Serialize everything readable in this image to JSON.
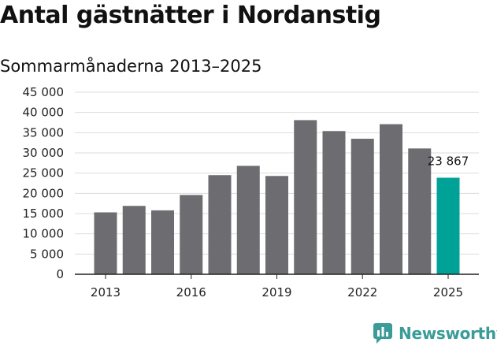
{
  "title": "Antal gästnätter i Nordanstig",
  "subtitle": "Sommarmånaderna 2013–2025",
  "brand": {
    "name": "Newsworthy",
    "color": "#3a9b97",
    "icon": "newsworthy-bar-chart-icon"
  },
  "colors": {
    "bar": "#6d6c71",
    "highlight": "#00a297",
    "grid": "#dddddd",
    "axis": "#222222"
  },
  "chart_data": {
    "type": "bar",
    "title": "Antal gästnätter i Nordanstig",
    "subtitle": "Sommarmånaderna 2013–2025",
    "categories": [
      "2013",
      "2014",
      "2015",
      "2016",
      "2017",
      "2018",
      "2019",
      "2020",
      "2021",
      "2022",
      "2023",
      "2024",
      "2025"
    ],
    "values": [
      15300,
      16900,
      15800,
      19600,
      24500,
      26800,
      24300,
      38100,
      35400,
      33500,
      37100,
      31100,
      23867
    ],
    "highlight_index": 12,
    "data_labels": [
      {
        "index": 12,
        "text": "23 867"
      }
    ],
    "ylim": [
      0,
      45000
    ],
    "yticks": [
      0,
      5000,
      10000,
      15000,
      20000,
      25000,
      30000,
      35000,
      40000,
      45000
    ],
    "ytick_labels": [
      "0",
      "5 000",
      "10 000",
      "15 000",
      "20 000",
      "25 000",
      "30 000",
      "35 000",
      "40 000",
      "45 000"
    ],
    "xtick_labels": [
      "2013",
      "2016",
      "2019",
      "2022",
      "2025"
    ],
    "xlabel": "",
    "ylabel": "",
    "grid": true,
    "legend": "none"
  }
}
